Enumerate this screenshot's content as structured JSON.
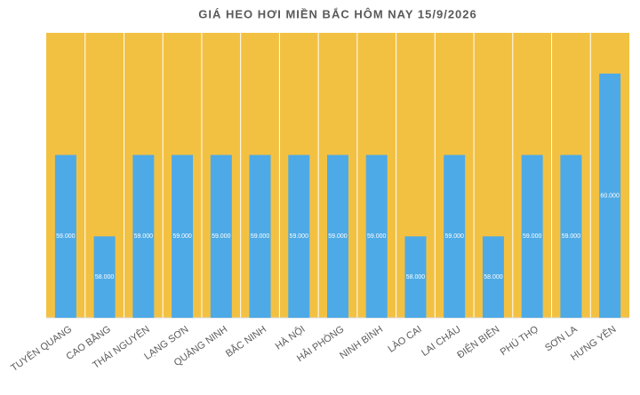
{
  "chart_data": {
    "type": "bar",
    "title": "GIÁ HEO HƠI MIỀN BẮC HÔM NAY 15/9/2026",
    "categories": [
      "TUYÊN QUANG",
      "CAO BẰNG",
      "THÁI NGUYÊN",
      "LẠNG SƠN",
      "QUẢNG NINH",
      "BẮC NINH",
      "HÀ NỘI",
      "HẢI PHÒNG",
      "NINH BÌNH",
      "LÀO CAI",
      "LAI CHÂU",
      "ĐIỆN BIÊN",
      "PHÚ THỌ",
      "SƠN LA",
      "HƯNG YÊN"
    ],
    "values": [
      59000,
      58000,
      59000,
      59000,
      59000,
      59000,
      59000,
      59000,
      59000,
      58000,
      59000,
      58000,
      59000,
      59000,
      60000
    ],
    "value_labels": [
      "59.000",
      "58.000",
      "59.000",
      "59.000",
      "59.000",
      "59.000",
      "59.000",
      "59.000",
      "59.000",
      "58.000",
      "59.000",
      "58.000",
      "59.000",
      "59.000",
      "60.000"
    ],
    "color": "#4eaae6",
    "background": "#f3c142",
    "ylim": [
      57000,
      60500
    ]
  }
}
